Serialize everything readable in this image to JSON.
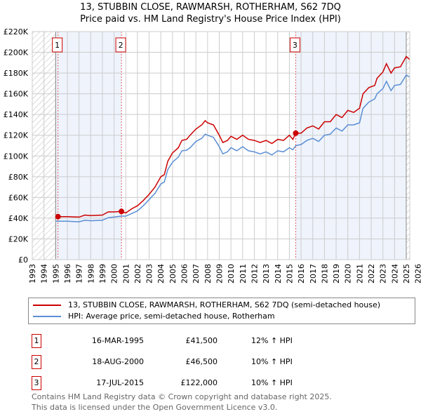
{
  "chart_data": {
    "type": "line",
    "title": "13, STUBBIN CLOSE, RAWMARSH, ROTHERHAM, S62 7DQ",
    "subtitle": "Price paid vs. HM Land Registry's House Price Index (HPI)",
    "xlim": [
      1993,
      2025.3
    ],
    "ylim": [
      0,
      220000
    ],
    "y_ticks": [
      {
        "v": 0,
        "l": "£0"
      },
      {
        "v": 20000,
        "l": "£20K"
      },
      {
        "v": 40000,
        "l": "£40K"
      },
      {
        "v": 60000,
        "l": "£60K"
      },
      {
        "v": 80000,
        "l": "£80K"
      },
      {
        "v": 100000,
        "l": "£100K"
      },
      {
        "v": 120000,
        "l": "£120K"
      },
      {
        "v": 140000,
        "l": "£140K"
      },
      {
        "v": 160000,
        "l": "£160K"
      },
      {
        "v": 180000,
        "l": "£180K"
      },
      {
        "v": 200000,
        "l": "£200K"
      },
      {
        "v": 220000,
        "l": "£220K"
      }
    ],
    "x_ticks": [
      "1993",
      "1994",
      "1995",
      "1996",
      "1997",
      "1998",
      "1999",
      "2000",
      "2001",
      "2002",
      "2003",
      "2004",
      "2005",
      "2006",
      "2007",
      "2008",
      "2009",
      "2010",
      "2011",
      "2012",
      "2013",
      "2014",
      "2015",
      "2016",
      "2017",
      "2018",
      "2019",
      "2020",
      "2021",
      "2022",
      "2023",
      "2024",
      "2025",
      "2026"
    ],
    "grid": true,
    "series": [
      {
        "name": "13, STUBBIN CLOSE, RAWMARSH, ROTHERHAM, S62 7DQ (semi-detached house)",
        "color": "#cc0000",
        "x": [
          1995.2,
          1996,
          1997,
          1997.5,
          1998,
          1999,
          1999.5,
          2000,
          2000.6,
          2001,
          2001.5,
          2002,
          2002.5,
          2003,
          2003.5,
          2004,
          2004.3,
          2004.6,
          2005,
          2005.5,
          2005.8,
          2006.2,
          2006.5,
          2007,
          2007.5,
          2007.8,
          2008,
          2008.5,
          2009,
          2009.3,
          2009.7,
          2010,
          2010.5,
          2011,
          2011.5,
          2012,
          2012.5,
          2013,
          2013.5,
          2014,
          2014.5,
          2015,
          2015.3,
          2015.55,
          2016,
          2016.5,
          2017,
          2017.5,
          2018,
          2018.5,
          2019,
          2019.5,
          2020,
          2020.5,
          2021,
          2021.3,
          2021.8,
          2022.3,
          2022.5,
          2023,
          2023.3,
          2023.7,
          2024,
          2024.5,
          2025,
          2025.3
        ],
        "y": [
          41500,
          41500,
          41000,
          43000,
          42500,
          43000,
          46000,
          46000,
          46500,
          45000,
          49000,
          52000,
          57000,
          63000,
          70000,
          80000,
          82000,
          95000,
          103000,
          108000,
          115000,
          116000,
          120000,
          126000,
          130000,
          134000,
          132000,
          130000,
          120000,
          113000,
          115000,
          119000,
          116000,
          120000,
          116000,
          115000,
          113000,
          115000,
          112000,
          116000,
          115000,
          120000,
          116000,
          122000,
          122000,
          127000,
          129000,
          126000,
          133000,
          133000,
          140000,
          137000,
          144000,
          142000,
          146000,
          160000,
          166000,
          168000,
          175000,
          181000,
          189000,
          180000,
          185000,
          186000,
          196000,
          193000
        ]
      },
      {
        "name": "HPI: Average price, semi-detached house, Rotherham",
        "color": "#5b8fd4",
        "x": [
          1995.0,
          1996,
          1997,
          1997.5,
          1998,
          1999,
          1999.5,
          2000,
          2000.6,
          2001,
          2001.5,
          2002,
          2002.5,
          2003,
          2003.5,
          2004,
          2004.3,
          2004.6,
          2005,
          2005.5,
          2005.8,
          2006.2,
          2006.5,
          2007,
          2007.5,
          2007.8,
          2008,
          2008.5,
          2009,
          2009.3,
          2009.7,
          2010,
          2010.5,
          2011,
          2011.5,
          2012,
          2012.5,
          2013,
          2013.5,
          2014,
          2014.5,
          2015,
          2015.3,
          2015.55,
          2016,
          2016.5,
          2017,
          2017.5,
          2018,
          2018.5,
          2019,
          2019.5,
          2020,
          2020.5,
          2021,
          2021.3,
          2021.8,
          2022.3,
          2022.5,
          2023,
          2023.3,
          2023.7,
          2024,
          2024.5,
          2025,
          2025.3
        ],
        "y": [
          37000,
          37000,
          36500,
          38000,
          37500,
          38000,
          40500,
          41000,
          42000,
          42000,
          44500,
          47000,
          52000,
          58000,
          64000,
          73000,
          75000,
          87000,
          94000,
          99000,
          105000,
          105500,
          108000,
          114000,
          117000,
          121000,
          120000,
          118000,
          109000,
          102000,
          104000,
          108000,
          105000,
          109000,
          105000,
          104000,
          102000,
          104000,
          101000,
          105000,
          104000,
          108000,
          106000,
          110000,
          111000,
          115000,
          117000,
          114000,
          120000,
          121000,
          127000,
          124000,
          130000,
          130000,
          132000,
          146000,
          152000,
          155000,
          160000,
          165000,
          172000,
          163000,
          168000,
          169000,
          178000,
          176000
        ]
      }
    ],
    "sales": [
      {
        "n": "1",
        "x": 1995.2,
        "y": 41500
      },
      {
        "n": "2",
        "x": 2000.63,
        "y": 46500
      },
      {
        "n": "3",
        "x": 2015.54,
        "y": 122000
      }
    ]
  },
  "title_line1": "13, STUBBIN CLOSE, RAWMARSH, ROTHERHAM, S62 7DQ",
  "title_line2": "Price paid vs. HM Land Registry's House Price Index (HPI)",
  "legend": {
    "red": "13, STUBBIN CLOSE, RAWMARSH, ROTHERHAM, S62 7DQ (semi-detached house)",
    "blue": "HPI: Average price, semi-detached house, Rotherham"
  },
  "sales_table": [
    {
      "n": "1",
      "date": "16-MAR-1995",
      "price": "£41,500",
      "hpi": "12% ↑ HPI"
    },
    {
      "n": "2",
      "date": "18-AUG-2000",
      "price": "£46,500",
      "hpi": "10% ↑ HPI"
    },
    {
      "n": "3",
      "date": "17-JUL-2015",
      "price": "£122,000",
      "hpi": "10% ↑ HPI"
    }
  ],
  "footer": {
    "line1": "Contains HM Land Registry data © Crown copyright and database right 2025.",
    "line2": "This data is licensed under the Open Government Licence v3.0."
  }
}
